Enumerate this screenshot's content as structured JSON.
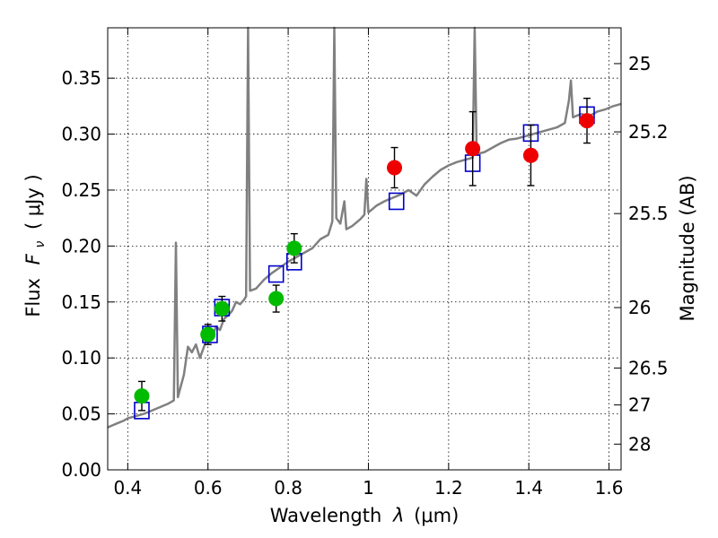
{
  "chart_data": {
    "type": "scatter",
    "xlabel_text": "Wavelength",
    "xlabel_symbol": "λ",
    "xlabel_unit": "(μm)",
    "ylabel_text": "Flux",
    "ylabel_symbol": "F",
    "ylabel_symbol_sub": "ν",
    "ylabel_unit": "( μJy )",
    "y2label": "Magnitude (AB)",
    "xlim": [
      0.35,
      1.63
    ],
    "ylim": [
      0.0,
      0.395
    ],
    "grid": true,
    "xticks": [
      {
        "value": 0.4,
        "label": "0.4"
      },
      {
        "value": 0.6,
        "label": "0.6"
      },
      {
        "value": 0.8,
        "label": "0.8"
      },
      {
        "value": 1.0,
        "label": "1"
      },
      {
        "value": 1.2,
        "label": "1.2"
      },
      {
        "value": 1.4,
        "label": "1.4"
      },
      {
        "value": 1.6,
        "label": "1.6"
      }
    ],
    "yticks": [
      {
        "value": 0.0,
        "label": "0.00"
      },
      {
        "value": 0.05,
        "label": "0.05"
      },
      {
        "value": 0.1,
        "label": "0.10"
      },
      {
        "value": 0.15,
        "label": "0.15"
      },
      {
        "value": 0.2,
        "label": "0.20"
      },
      {
        "value": 0.25,
        "label": "0.25"
      },
      {
        "value": 0.3,
        "label": "0.30"
      },
      {
        "value": 0.35,
        "label": "0.35"
      }
    ],
    "y2ticks": [
      {
        "label": "25",
        "flux": 0.363
      },
      {
        "label": "25.2",
        "flux": 0.302
      },
      {
        "label": "25.5",
        "flux": 0.229
      },
      {
        "label": "26",
        "flux": 0.145
      },
      {
        "label": "26.5",
        "flux": 0.091
      },
      {
        "label": "27",
        "flux": 0.058
      },
      {
        "label": "28",
        "flux": 0.023
      }
    ],
    "series": [
      {
        "kind": "line",
        "color": "#808080",
        "points": [
          [
            0.35,
            0.038
          ],
          [
            0.37,
            0.041
          ],
          [
            0.39,
            0.044
          ],
          [
            0.4,
            0.046
          ],
          [
            0.42,
            0.048
          ],
          [
            0.44,
            0.05
          ],
          [
            0.46,
            0.053
          ],
          [
            0.48,
            0.056
          ],
          [
            0.5,
            0.059
          ],
          [
            0.515,
            0.062
          ],
          [
            0.52,
            0.203
          ],
          [
            0.525,
            0.065
          ],
          [
            0.54,
            0.085
          ],
          [
            0.55,
            0.11
          ],
          [
            0.56,
            0.105
          ],
          [
            0.57,
            0.112
          ],
          [
            0.58,
            0.1
          ],
          [
            0.59,
            0.11
          ],
          [
            0.6,
            0.121
          ],
          [
            0.61,
            0.118
          ],
          [
            0.62,
            0.128
          ],
          [
            0.63,
            0.125
          ],
          [
            0.64,
            0.135
          ],
          [
            0.65,
            0.138
          ],
          [
            0.66,
            0.142
          ],
          [
            0.67,
            0.15
          ],
          [
            0.68,
            0.148
          ],
          [
            0.69,
            0.152
          ],
          [
            0.695,
            0.155
          ],
          [
            0.7,
            0.395
          ],
          [
            0.705,
            0.16
          ],
          [
            0.72,
            0.162
          ],
          [
            0.74,
            0.17
          ],
          [
            0.76,
            0.176
          ],
          [
            0.78,
            0.181
          ],
          [
            0.8,
            0.186
          ],
          [
            0.82,
            0.19
          ],
          [
            0.84,
            0.194
          ],
          [
            0.86,
            0.198
          ],
          [
            0.88,
            0.206
          ],
          [
            0.9,
            0.21
          ],
          [
            0.91,
            0.222
          ],
          [
            0.915,
            0.395
          ],
          [
            0.92,
            0.225
          ],
          [
            0.93,
            0.22
          ],
          [
            0.94,
            0.24
          ],
          [
            0.945,
            0.215
          ],
          [
            0.96,
            0.218
          ],
          [
            0.98,
            0.224
          ],
          [
            0.99,
            0.228
          ],
          [
            0.995,
            0.26
          ],
          [
            1.0,
            0.23
          ],
          [
            1.02,
            0.236
          ],
          [
            1.04,
            0.24
          ],
          [
            1.06,
            0.243
          ],
          [
            1.08,
            0.246
          ],
          [
            1.1,
            0.25
          ],
          [
            1.12,
            0.245
          ],
          [
            1.14,
            0.255
          ],
          [
            1.16,
            0.262
          ],
          [
            1.18,
            0.268
          ],
          [
            1.2,
            0.272
          ],
          [
            1.22,
            0.275
          ],
          [
            1.24,
            0.277
          ],
          [
            1.26,
            0.279
          ],
          [
            1.265,
            0.395
          ],
          [
            1.27,
            0.282
          ],
          [
            1.29,
            0.284
          ],
          [
            1.31,
            0.288
          ],
          [
            1.33,
            0.292
          ],
          [
            1.35,
            0.295
          ],
          [
            1.37,
            0.296
          ],
          [
            1.39,
            0.298
          ],
          [
            1.41,
            0.3
          ],
          [
            1.43,
            0.302
          ],
          [
            1.45,
            0.304
          ],
          [
            1.47,
            0.306
          ],
          [
            1.49,
            0.31
          ],
          [
            1.5,
            0.33
          ],
          [
            1.505,
            0.348
          ],
          [
            1.51,
            0.315
          ],
          [
            1.53,
            0.318
          ],
          [
            1.55,
            0.316
          ],
          [
            1.57,
            0.32
          ],
          [
            1.59,
            0.322
          ],
          [
            1.61,
            0.325
          ],
          [
            1.63,
            0.327
          ]
        ]
      },
      {
        "kind": "squares",
        "color": "#0000cc",
        "points": [
          [
            0.435,
            0.053
          ],
          [
            0.605,
            0.121
          ],
          [
            0.635,
            0.145
          ],
          [
            0.77,
            0.175
          ],
          [
            0.815,
            0.186
          ],
          [
            1.07,
            0.24
          ],
          [
            1.26,
            0.274
          ],
          [
            1.405,
            0.301
          ],
          [
            1.545,
            0.317
          ]
        ]
      },
      {
        "kind": "circles",
        "color": "#00bb00",
        "points": [
          {
            "x": 0.435,
            "y": 0.066,
            "err": 0.013
          },
          {
            "x": 0.6,
            "y": 0.121,
            "err": 0.009
          },
          {
            "x": 0.635,
            "y": 0.144,
            "err": 0.011
          },
          {
            "x": 0.77,
            "y": 0.153,
            "err": 0.012
          },
          {
            "x": 0.815,
            "y": 0.198,
            "err": 0.013
          }
        ]
      },
      {
        "kind": "circles",
        "color": "#ee0000",
        "points": [
          {
            "x": 1.065,
            "y": 0.27,
            "err": 0.018
          },
          {
            "x": 1.26,
            "y": 0.287,
            "err": 0.033
          },
          {
            "x": 1.405,
            "y": 0.281,
            "err": 0.027
          },
          {
            "x": 1.545,
            "y": 0.312,
            "err": 0.02
          }
        ]
      }
    ]
  }
}
